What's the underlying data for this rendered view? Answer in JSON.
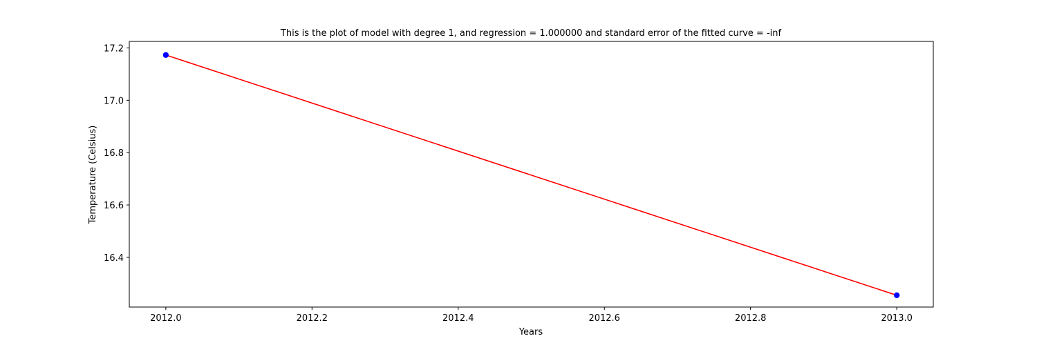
{
  "chart_data": {
    "type": "scatter",
    "title": "This is the plot of model with degree 1, and regression = 1.000000 and standard error of the fitted curve = -inf",
    "xlabel": "Years",
    "ylabel": "Temperature (Celsius)",
    "xlim": [
      2011.95,
      2013.05
    ],
    "ylim": [
      16.21,
      17.225
    ],
    "xticks": [
      2012.0,
      2012.2,
      2012.4,
      2012.6,
      2012.8,
      2013.0
    ],
    "xtick_labels": [
      "2012.0",
      "2012.2",
      "2012.4",
      "2012.6",
      "2012.8",
      "2013.0"
    ],
    "yticks": [
      16.4,
      16.6,
      16.8,
      17.0,
      17.2
    ],
    "ytick_labels": [
      "16.4",
      "16.6",
      "16.8",
      "17.0",
      "17.2"
    ],
    "grid": false,
    "series": [
      {
        "kind": "scatter",
        "color": "#0000ff",
        "x": [
          2012.0,
          2013.0
        ],
        "y": [
          17.173,
          16.255
        ]
      },
      {
        "kind": "line",
        "color": "#ff0000",
        "x": [
          2012.0,
          2013.0
        ],
        "y": [
          17.173,
          16.255
        ]
      }
    ]
  }
}
